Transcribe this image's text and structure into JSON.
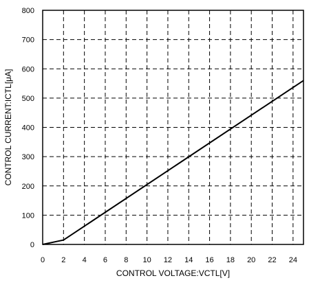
{
  "chart_data": {
    "type": "line",
    "xlabel": "CONTROL VOLTAGE:VCTL[V]",
    "ylabel": "CONTROL CURRENT:ICTL[μA]",
    "xlim": [
      0,
      25
    ],
    "ylim": [
      0,
      800
    ],
    "x_ticks": [
      0,
      2,
      4,
      6,
      8,
      10,
      12,
      14,
      16,
      18,
      20,
      22,
      24
    ],
    "x_tick_labels": [
      "0",
      "2",
      "4",
      "6",
      "8",
      "10",
      "12",
      "14",
      "16",
      "18",
      "20",
      "22",
      "24"
    ],
    "y_ticks": [
      0,
      100,
      200,
      300,
      400,
      500,
      600,
      700,
      800
    ],
    "y_tick_labels": [
      "0",
      "100",
      "200",
      "300",
      "400",
      "500",
      "600",
      "700",
      "800"
    ],
    "grid": true,
    "grid_style": "dashed",
    "series": [
      {
        "color": "#000000",
        "x": [
          0,
          2,
          25
        ],
        "y": [
          0,
          15,
          560
        ]
      }
    ]
  }
}
